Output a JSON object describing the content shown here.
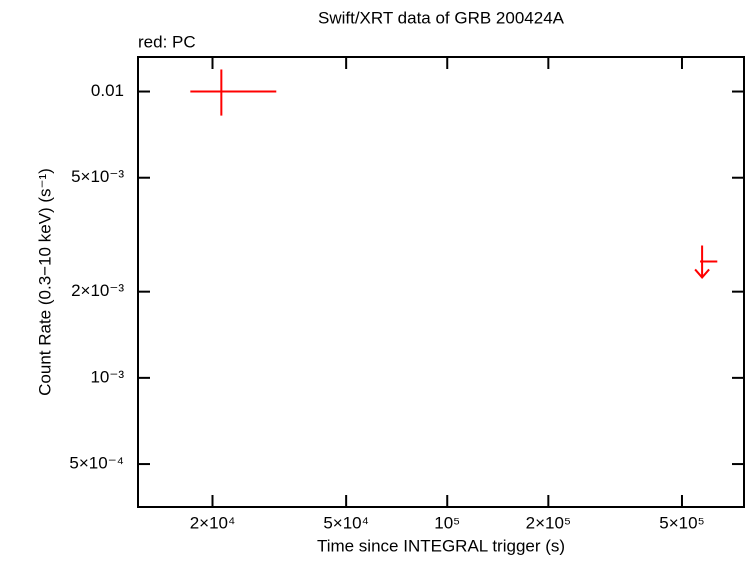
{
  "chart_data": {
    "type": "scatter",
    "title": "Swift/XRT data of GRB 200424A",
    "annotation": "red: PC",
    "x_label": "Time since INTEGRAL trigger (s)",
    "y_label": "Count Rate (0.3−10 keV) (s⁻¹)",
    "xscale": "log",
    "yscale": "log",
    "xlim": [
      12000,
      765000
    ],
    "ylim": [
      0.000354,
      0.0132
    ],
    "xticks": [
      {
        "value": 20000,
        "label": "2×10⁴"
      },
      {
        "value": 50000,
        "label": "5×10⁴"
      },
      {
        "value": 100000,
        "label": "10⁵"
      },
      {
        "value": 200000,
        "label": "2×10⁵"
      },
      {
        "value": 500000,
        "label": "5×10⁵"
      }
    ],
    "yticks": [
      0.01,
      {
        "value": 0.005,
        "label": "5×10⁻³"
      },
      {
        "value": 0.002,
        "label": "2×10⁻³"
      },
      {
        "value": 0.001,
        "label": "10⁻³"
      },
      {
        "value": 0.0005,
        "label": "5×10⁻⁴"
      }
    ],
    "color": "#ff0000",
    "points": [
      {
        "x": 21250,
        "x_low": 17180,
        "x_high": 30970,
        "y": 0.01,
        "y_low": 0.00824,
        "y_high": 0.01194
      }
    ],
    "upper_limits": [
      {
        "x": 574000,
        "x_low": 566000,
        "x_high": 637000,
        "y": 0.00255
      }
    ]
  }
}
